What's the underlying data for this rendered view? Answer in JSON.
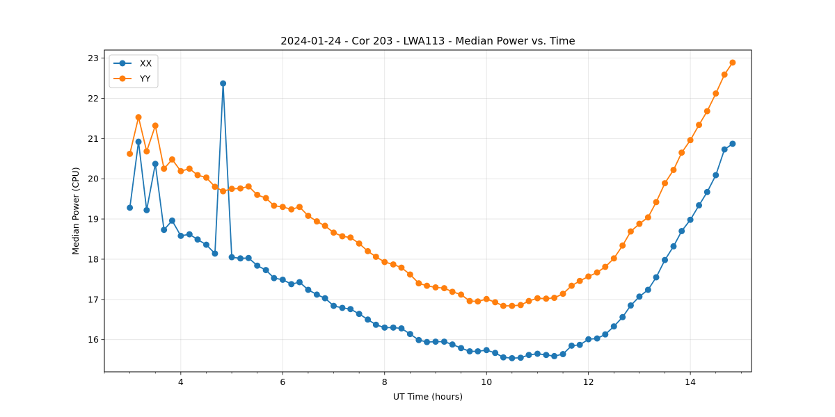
{
  "chart_data": {
    "type": "line",
    "title": "2024-01-24 - Cor 203 - LWA113 - Median Power vs. Time",
    "xlabel": "UT Time (hours)",
    "ylabel": "Median Power (CPU)",
    "xlim": [
      2.5,
      15.2
    ],
    "ylim": [
      15.2,
      23.2
    ],
    "xticks": [
      4,
      6,
      8,
      10,
      12,
      14
    ],
    "yticks": [
      16,
      17,
      18,
      19,
      20,
      21,
      22,
      23
    ],
    "grid": true,
    "legend": "top-left",
    "x": [
      3.0,
      3.17,
      3.33,
      3.5,
      3.67,
      3.83,
      4.0,
      4.17,
      4.33,
      4.5,
      4.67,
      4.83,
      5.0,
      5.17,
      5.33,
      5.5,
      5.67,
      5.83,
      6.0,
      6.17,
      6.33,
      6.5,
      6.67,
      6.83,
      7.0,
      7.17,
      7.33,
      7.5,
      7.67,
      7.83,
      8.0,
      8.17,
      8.33,
      8.5,
      8.67,
      8.83,
      9.0,
      9.17,
      9.33,
      9.5,
      9.67,
      9.83,
      10.0,
      10.17,
      10.33,
      10.5,
      10.67,
      10.83,
      11.0,
      11.17,
      11.33,
      11.5,
      11.67,
      11.83,
      12.0,
      12.17,
      12.33,
      12.5,
      12.67,
      12.83,
      13.0,
      13.17,
      13.33,
      13.5,
      13.67,
      13.83,
      14.0,
      14.17,
      14.33,
      14.5,
      14.67,
      14.83
    ],
    "series": [
      {
        "name": "XX",
        "color": "#1f77b4",
        "values": [
          19.28,
          20.92,
          19.22,
          20.37,
          18.73,
          18.96,
          18.58,
          18.62,
          18.49,
          18.36,
          18.14,
          22.37,
          18.05,
          18.02,
          18.03,
          17.84,
          17.73,
          17.53,
          17.49,
          17.38,
          17.43,
          17.24,
          17.12,
          17.03,
          16.84,
          16.79,
          16.76,
          16.64,
          16.5,
          16.37,
          16.3,
          16.3,
          16.28,
          16.14,
          15.99,
          15.94,
          15.95,
          15.95,
          15.88,
          15.79,
          15.71,
          15.71,
          15.74,
          15.67,
          15.56,
          15.54,
          15.55,
          15.62,
          15.65,
          15.62,
          15.59,
          15.64,
          15.85,
          15.87,
          16.01,
          16.03,
          16.13,
          16.33,
          16.56,
          16.85,
          17.07,
          17.24,
          17.55,
          17.98,
          18.32,
          18.7,
          18.98,
          19.34,
          19.67,
          20.09,
          20.73,
          20.87
        ]
      },
      {
        "name": "YY",
        "color": "#ff7f0e",
        "values": [
          20.62,
          21.53,
          20.68,
          21.32,
          20.25,
          20.48,
          20.19,
          20.25,
          20.09,
          20.03,
          19.8,
          19.69,
          19.75,
          19.76,
          19.81,
          19.6,
          19.52,
          19.33,
          19.3,
          19.24,
          19.3,
          19.08,
          18.94,
          18.83,
          18.66,
          18.57,
          18.54,
          18.39,
          18.2,
          18.06,
          17.93,
          17.87,
          17.79,
          17.62,
          17.4,
          17.34,
          17.3,
          17.28,
          17.19,
          17.12,
          16.96,
          16.95,
          17.01,
          16.93,
          16.84,
          16.84,
          16.86,
          16.96,
          17.03,
          17.02,
          17.04,
          17.14,
          17.34,
          17.46,
          17.57,
          17.67,
          17.81,
          18.02,
          18.34,
          18.69,
          18.88,
          19.04,
          19.42,
          19.89,
          20.22,
          20.65,
          20.96,
          21.34,
          21.68,
          22.12,
          22.59,
          22.89
        ]
      }
    ]
  }
}
